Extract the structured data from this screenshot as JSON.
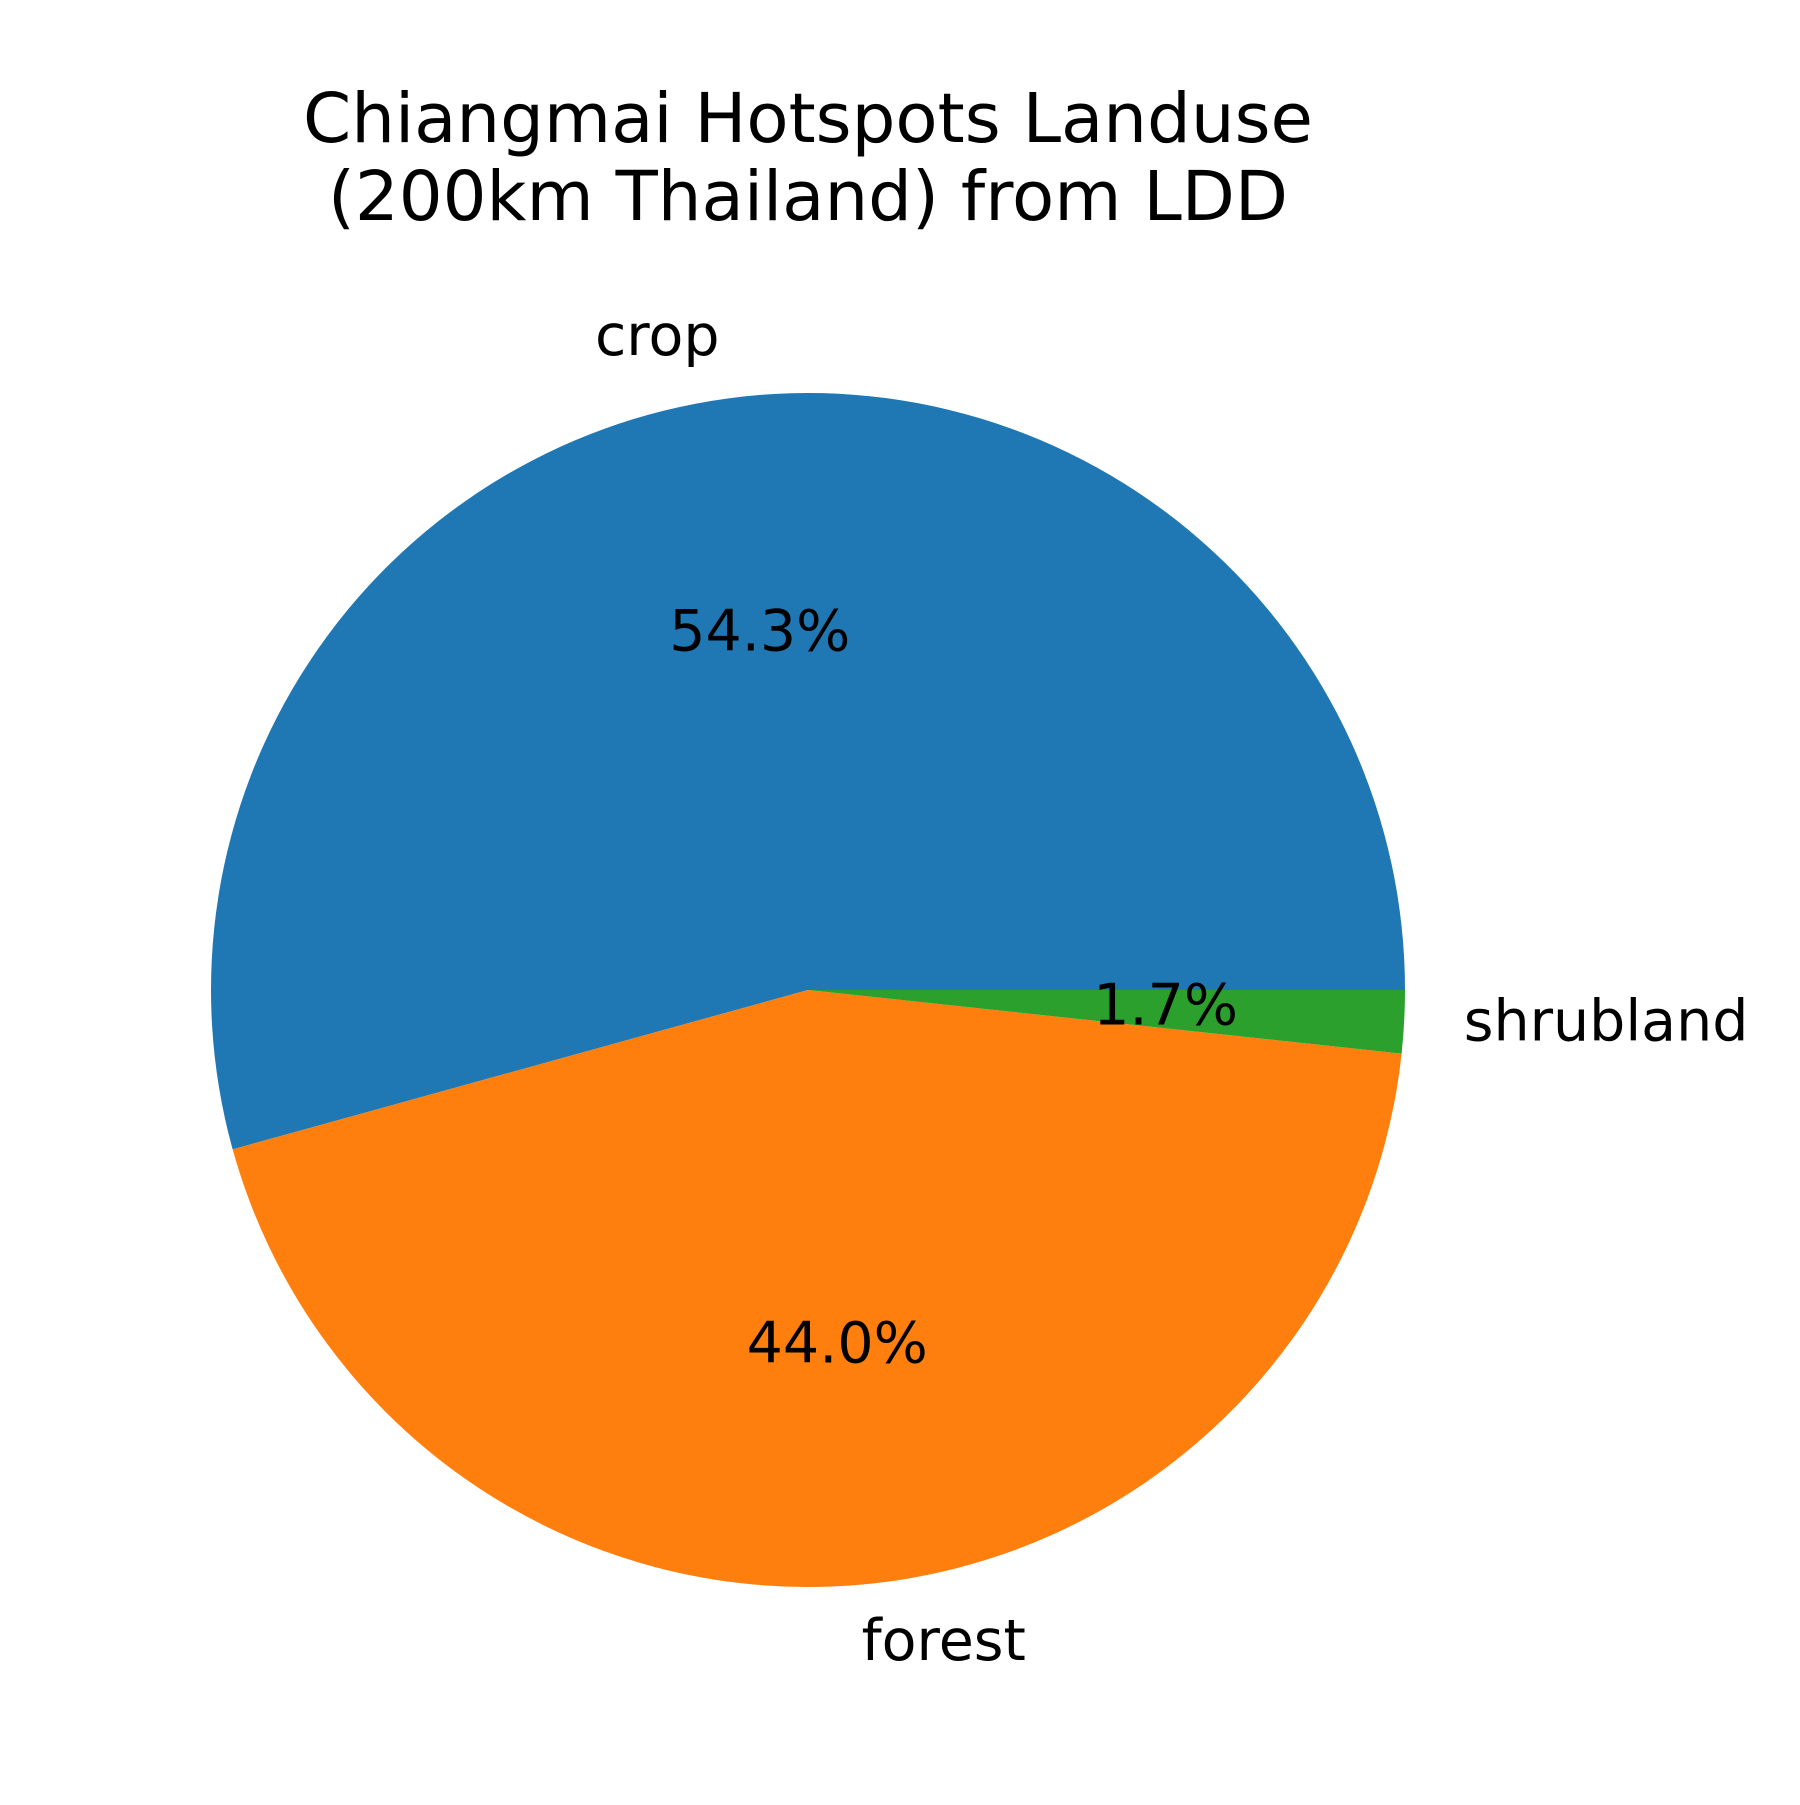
{
  "chart_data": {
    "type": "pie",
    "title_lines": [
      "Chiangmai Hotspots Landuse",
      "(200km Thailand) from LDD"
    ],
    "slices": [
      {
        "label": "crop",
        "value": 54.3,
        "pct_text": "54.3%",
        "color": "#1f77b4"
      },
      {
        "label": "forest",
        "value": 44.0,
        "pct_text": "44.0%",
        "color": "#ff7f0e"
      },
      {
        "label": "shrubland",
        "value": 1.7,
        "pct_text": "1.7%",
        "color": "#2ca02c"
      }
    ],
    "start_angle_deg": 0,
    "direction": "counterclockwise",
    "legend": "none"
  }
}
